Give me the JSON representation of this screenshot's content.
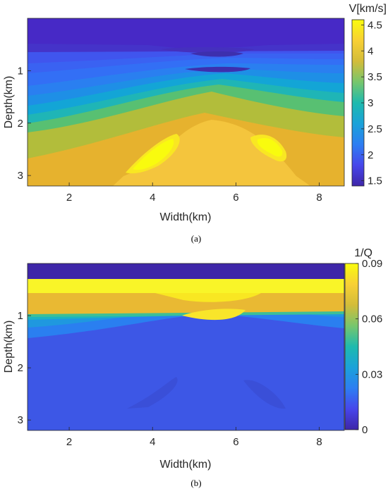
{
  "colormap": "parula",
  "chart_data": [
    {
      "type": "heatmap",
      "panel_label": "(a)",
      "title": "",
      "xlabel": "Width(km)",
      "ylabel": "Depth(km)",
      "xlim": [
        1.0,
        8.6
      ],
      "ylim": [
        3.2,
        0.0
      ],
      "x_ticks": [
        2,
        4,
        6,
        8
      ],
      "x_tick_labels": [
        "2",
        "4",
        "6",
        "8"
      ],
      "y_ticks": [
        1,
        2,
        3
      ],
      "y_tick_labels": [
        "1",
        "2",
        "3"
      ],
      "colorbar": {
        "title": "V[km/s]",
        "range": [
          1.4,
          4.6
        ],
        "ticks": [
          1.5,
          2,
          2.5,
          3,
          3.5,
          4,
          4.5
        ],
        "tick_labels": [
          "1.5",
          "2",
          "2.5",
          "3",
          "3.5",
          "4",
          "4.5"
        ]
      },
      "field_description": "Velocity model: ~1.5 km/s water layer at top, velocity increasing with depth through layered anticline, high-velocity (~4.5 km/s) dome and lenses near 4.4 km and 7.1 km width at 2.4-2.8 km depth"
    },
    {
      "type": "heatmap",
      "panel_label": "(b)",
      "title": "",
      "xlabel": "Width(km)",
      "ylabel": "Depth(km)",
      "xlim": [
        1.0,
        8.6
      ],
      "ylim": [
        3.2,
        0.0
      ],
      "x_ticks": [
        2,
        4,
        6,
        8
      ],
      "x_tick_labels": [
        "2",
        "4",
        "6",
        "8"
      ],
      "y_ticks": [
        1,
        2,
        3
      ],
      "y_tick_labels": [
        "1",
        "2",
        "3"
      ],
      "colorbar": {
        "title": "1/Q",
        "range": [
          0,
          0.09
        ],
        "ticks": [
          0,
          0.03,
          0.06,
          0.09
        ],
        "tick_labels": [
          "0",
          "0.03",
          "0.06",
          "0.09"
        ]
      },
      "field_description": "Attenuation model: 0 in water layer, ~0.09 just below water, ~0.075 down to ~1.1 km, decreasing to ~0.02 at depth following the velocity structure"
    }
  ]
}
